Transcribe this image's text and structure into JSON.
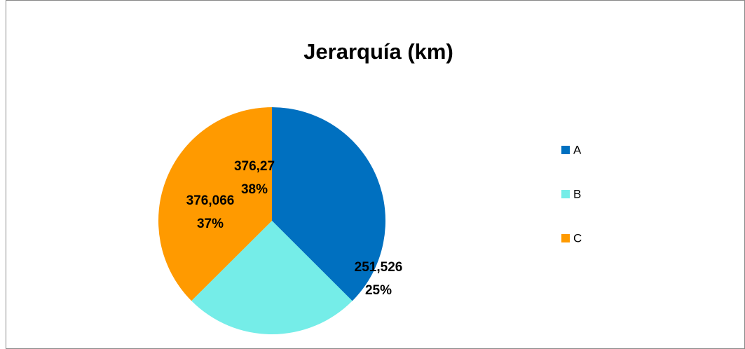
{
  "chart_data": {
    "type": "pie",
    "title": "Jerarquía (km)",
    "categories": [
      "A",
      "B",
      "C"
    ],
    "values": [
      376.27,
      251.526,
      376.066
    ],
    "value_labels": [
      "376,27",
      "251,526",
      "376,066"
    ],
    "percent_labels": [
      "38%",
      "25%",
      "37%"
    ],
    "colors": [
      "#0070c0",
      "#75ede8",
      "#ff9a00"
    ],
    "legend": "right"
  }
}
